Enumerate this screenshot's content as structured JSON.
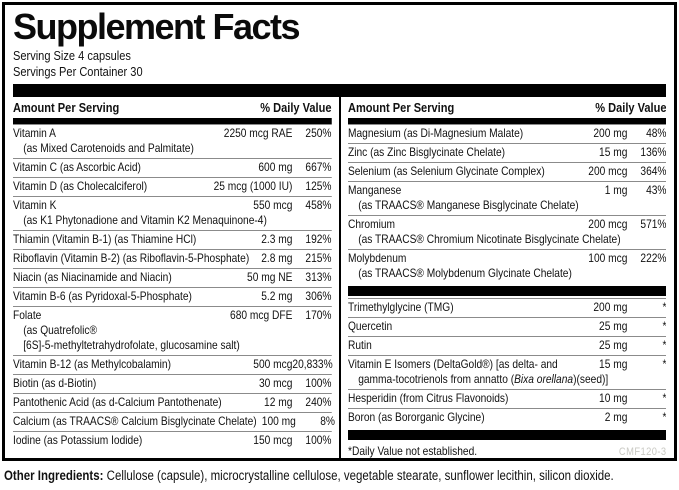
{
  "title": "Supplement Facts",
  "serving": {
    "size": "Serving Size 4 capsules",
    "per_container": "Servings Per Container 30"
  },
  "table": {
    "amount_header": "Amount Per Serving",
    "dv_header": "% Daily Value"
  },
  "left_rows": [
    {
      "name": "Vitamin A",
      "sub": "(as Mixed Carotenoids and Palmitate)",
      "amount": "2250 mcg RAE",
      "dv": "250%"
    },
    {
      "name": "Vitamin C (as Ascorbic Acid)",
      "amount": "600 mg",
      "dv": "667%"
    },
    {
      "name": "Vitamin D (as Cholecalciferol)",
      "amount": "25 mcg (1000 IU)",
      "dv": "125%"
    },
    {
      "name": "Vitamin K",
      "sub": "(as K1 Phytonadione and Vitamin K2 Menaquinone-4)",
      "amount": "550 mcg",
      "dv": "458%"
    },
    {
      "name": "Thiamin (Vitamin B-1) (as Thiamine HCl)",
      "amount": "2.3 mg",
      "dv": "192%"
    },
    {
      "name": "Riboflavin (Vitamin B-2) (as Riboflavin-5-Phosphate)",
      "amount": "2.8 mg",
      "dv": "215%"
    },
    {
      "name": "Niacin (as Niacinamide and Niacin)",
      "amount": "50 mg NE",
      "dv": "313%"
    },
    {
      "name": "Vitamin B-6 (as Pyridoxal-5-Phosphate)",
      "amount": "5.2 mg",
      "dv": "306%"
    },
    {
      "name": "Folate",
      "sub": "(as Quatrefolic®",
      "sub2": "[6S]-5-methyltetrahydrofolate, glucosamine salt)",
      "amount": "680 mcg DFE",
      "dv": "170%"
    },
    {
      "name": "Vitamin B-12 (as Methylcobalamin)",
      "amount": "500 mcg",
      "dv": "20,833%"
    },
    {
      "name": "Biotin (as d-Biotin)",
      "amount": "30 mcg",
      "dv": "100%"
    },
    {
      "name": "Pantothenic Acid (as d-Calcium Pantothenate)",
      "amount": "12 mg",
      "dv": "240%"
    },
    {
      "name": "Calcium (as TRAACS® Calcium Bisglycinate Chelate)",
      "amount": "100 mg",
      "dv": "8%"
    },
    {
      "name": "Iodine (as Potassium Iodide)",
      "amount": "150 mcg",
      "dv": "100%"
    }
  ],
  "right_minerals": [
    {
      "name": "Magnesium (as Di-Magnesium Malate)",
      "amount": "200 mg",
      "dv": "48%"
    },
    {
      "name": "Zinc (as Zinc Bisglycinate Chelate)",
      "amount": "15 mg",
      "dv": "136%"
    },
    {
      "name": "Selenium (as Selenium Glycinate Complex)",
      "amount": "200 mcg",
      "dv": "364%"
    },
    {
      "name": "Manganese",
      "sub": "(as TRAACS® Manganese Bisglycinate Chelate)",
      "amount": "1 mg",
      "dv": "43%"
    },
    {
      "name": "Chromium",
      "sub": "(as TRAACS® Chromium Nicotinate Bisglycinate Chelate)",
      "amount": "200 mcg",
      "dv": "571%"
    },
    {
      "name": "Molybdenum",
      "sub": "(as TRAACS® Molybdenum Glycinate Chelate)",
      "amount": "100 mcg",
      "dv": "222%"
    }
  ],
  "right_other": [
    {
      "name": "Trimethylglycine (TMG)",
      "amount": "200 mg",
      "dv": "*"
    },
    {
      "name": "Quercetin",
      "amount": "25 mg",
      "dv": "*"
    },
    {
      "name": "Rutin",
      "amount": "25 mg",
      "dv": "*"
    },
    {
      "name": "Vitamin E Isomers (DeltaGold®) [as delta- and",
      "sub_pre": "gamma-tocotrienols from annatto (",
      "sub_italic": "Bixa orellana",
      "sub_post": ")(seed)]",
      "amount": "15 mg",
      "dv": "*"
    },
    {
      "name": "Hesperidin (from Citrus Flavonoids)",
      "amount": "10 mg",
      "dv": "*"
    },
    {
      "name": "Boron (as Bororganic Glycine)",
      "amount": "2 mg",
      "dv": "*"
    }
  ],
  "footnote": "*Daily Value not established.",
  "product_code": "CMF120-3",
  "other_ingredients": {
    "label": "Other Ingredients:",
    "text": " Cellulose (capsule), microcrystalline cellulose, vegetable stearate, sunflower lecithin, silicon dioxide."
  }
}
